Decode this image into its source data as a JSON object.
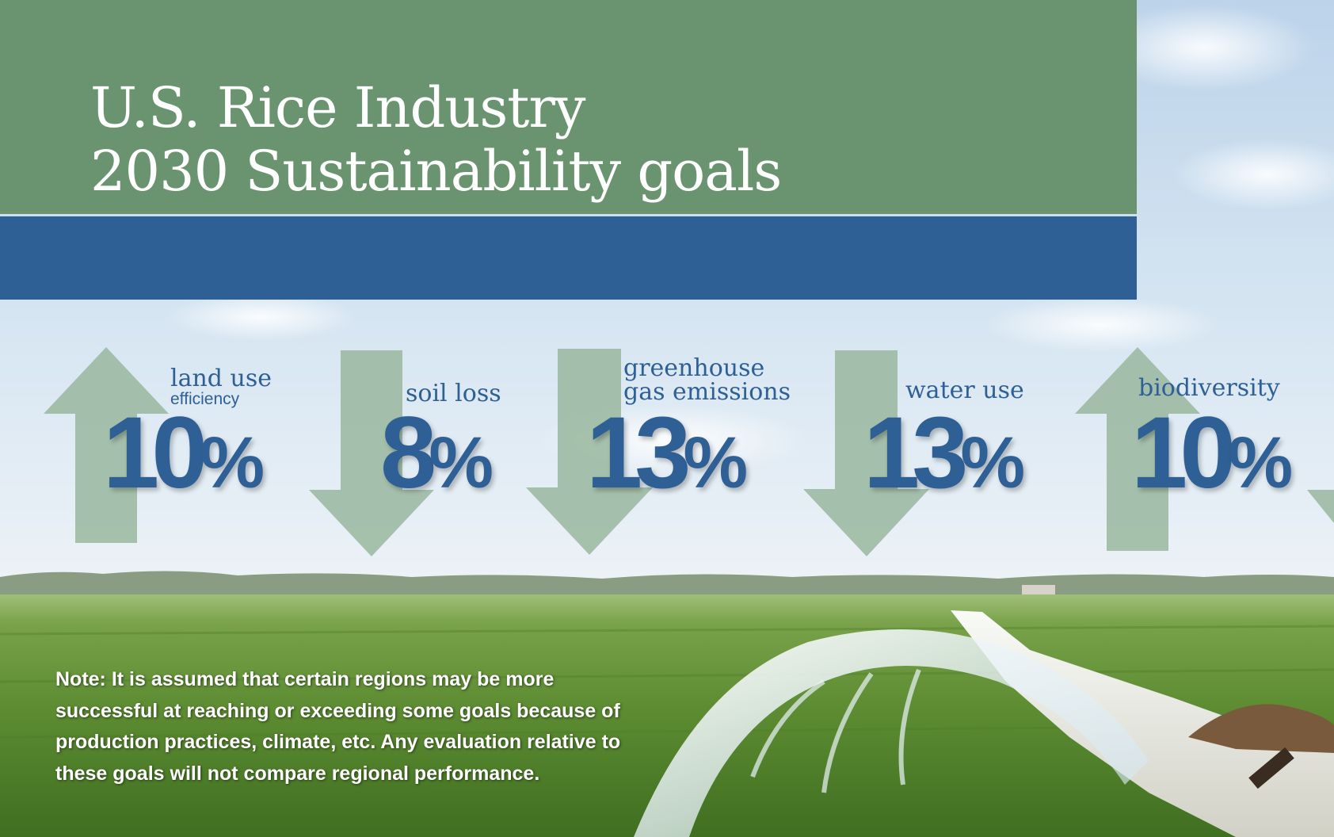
{
  "title": {
    "line1": "U.S. Rice Industry",
    "line2": "2030 Sustainability goals"
  },
  "goals": [
    {
      "label": "land use",
      "sublabel": "efficiency",
      "value": "10",
      "unit": "%",
      "direction": "up"
    },
    {
      "label": "soil loss",
      "value": "8",
      "unit": "%",
      "direction": "down"
    },
    {
      "label_line1": "greenhouse",
      "label_line2": "gas emissions",
      "value": "13",
      "unit": "%",
      "direction": "down"
    },
    {
      "label": "water use",
      "value": "13",
      "unit": "%",
      "direction": "down"
    },
    {
      "label": "biodiversity",
      "value": "10",
      "unit": "%",
      "direction": "up"
    }
  ],
  "note": "Note: It is assumed that certain regions may be more successful at reaching or exceeding some goals because of production practices, climate, etc. Any evaluation relative to these goals will not compare regional performance.",
  "colors": {
    "header_green": "#6a9470",
    "header_blue": "#2e6096",
    "text_blue": "#2e6096",
    "arrow": "#9bb8a0"
  }
}
